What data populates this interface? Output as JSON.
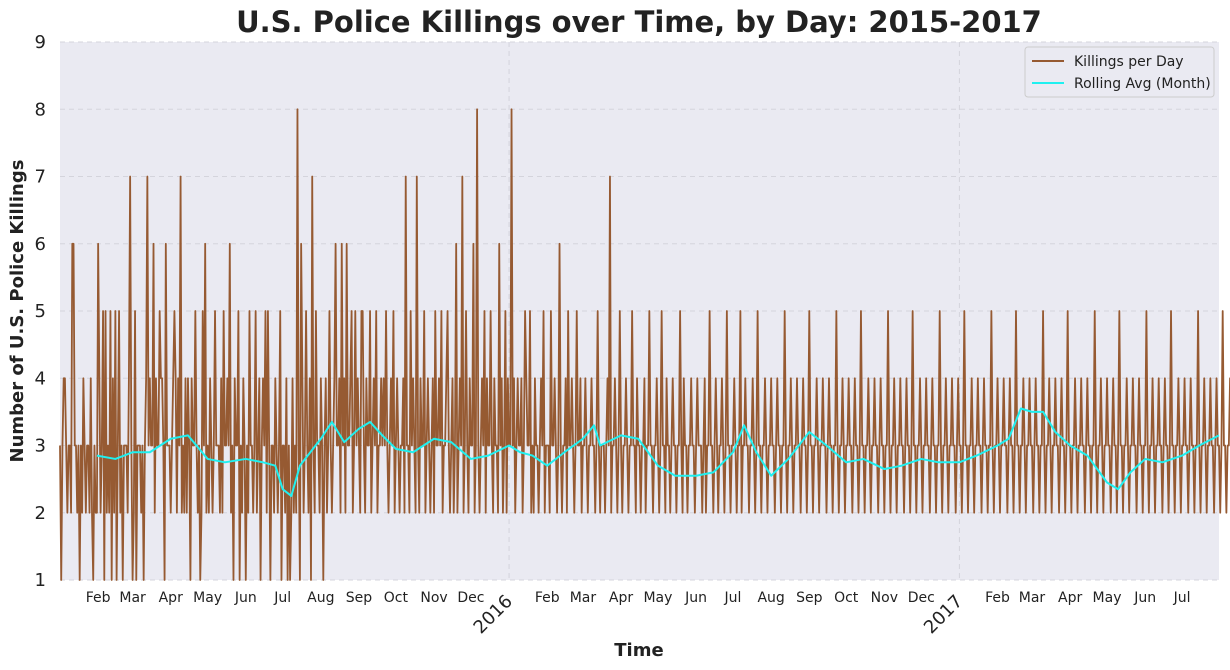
{
  "chart_data": {
    "type": "line",
    "title": "U.S. Police Killings over Time, by Day: 2015-2017",
    "xlabel": "Time",
    "ylabel": "Number of U.S. Police Killings",
    "ylim": [
      1,
      9
    ],
    "y_ticks": [
      1,
      2,
      3,
      4,
      5,
      6,
      7,
      8,
      9
    ],
    "xlim": [
      "2015-01-01",
      "2017-07-31"
    ],
    "grid": true,
    "legend_position": "top-right",
    "x_ticks": [
      {
        "date": "2015-02-01",
        "label": "Feb"
      },
      {
        "date": "2015-03-01",
        "label": "Mar"
      },
      {
        "date": "2015-04-01",
        "label": "Apr"
      },
      {
        "date": "2015-05-01",
        "label": "May"
      },
      {
        "date": "2015-06-01",
        "label": "Jun"
      },
      {
        "date": "2015-07-01",
        "label": "Jul"
      },
      {
        "date": "2015-08-01",
        "label": "Aug"
      },
      {
        "date": "2015-09-01",
        "label": "Sep"
      },
      {
        "date": "2015-10-01",
        "label": "Oct"
      },
      {
        "date": "2015-11-01",
        "label": "Nov"
      },
      {
        "date": "2015-12-01",
        "label": "Dec"
      },
      {
        "date": "2016-01-01",
        "label": "2016",
        "major": true
      },
      {
        "date": "2016-02-01",
        "label": "Feb"
      },
      {
        "date": "2016-03-01",
        "label": "Mar"
      },
      {
        "date": "2016-04-01",
        "label": "Apr"
      },
      {
        "date": "2016-05-01",
        "label": "May"
      },
      {
        "date": "2016-06-01",
        "label": "Jun"
      },
      {
        "date": "2016-07-01",
        "label": "Jul"
      },
      {
        "date": "2016-08-01",
        "label": "Aug"
      },
      {
        "date": "2016-09-01",
        "label": "Sep"
      },
      {
        "date": "2016-10-01",
        "label": "Oct"
      },
      {
        "date": "2016-11-01",
        "label": "Nov"
      },
      {
        "date": "2016-12-01",
        "label": "Dec"
      },
      {
        "date": "2017-01-01",
        "label": "2017",
        "major": true
      },
      {
        "date": "2017-02-01",
        "label": "Feb"
      },
      {
        "date": "2017-03-01",
        "label": "Mar"
      },
      {
        "date": "2017-04-01",
        "label": "Apr"
      },
      {
        "date": "2017-05-01",
        "label": "May"
      },
      {
        "date": "2017-06-01",
        "label": "Jun"
      },
      {
        "date": "2017-07-01",
        "label": "Jul"
      }
    ],
    "series": [
      {
        "name": "Killings per Day",
        "color": "#965a32",
        "x_start": "2015-01-01",
        "x_step": "1 day",
        "values": [
          3,
          1,
          3,
          4,
          4,
          3,
          2,
          3,
          3,
          2,
          6,
          6,
          3,
          3,
          2,
          3,
          1,
          3,
          2,
          4,
          3,
          2,
          3,
          3,
          2,
          4,
          2,
          1,
          3,
          2,
          2,
          6,
          4,
          2,
          3,
          5,
          1,
          5,
          2,
          3,
          2,
          5,
          1,
          4,
          2,
          5,
          1,
          3,
          5,
          2,
          3,
          1,
          3,
          3,
          3,
          2,
          4,
          7,
          3,
          1,
          2,
          5,
          1,
          3,
          3,
          3,
          2,
          3,
          1,
          3,
          4,
          7,
          3,
          4,
          3,
          3,
          6,
          2,
          4,
          3,
          3,
          5,
          4,
          4,
          3,
          1,
          6,
          3,
          3,
          3,
          2,
          3,
          4,
          5,
          4,
          2,
          4,
          3,
          7,
          2,
          3,
          2,
          4,
          2,
          4,
          3,
          1,
          4,
          3,
          3,
          5,
          3,
          2,
          3,
          1,
          2,
          5,
          3,
          6,
          2,
          3,
          2,
          4,
          3,
          2,
          3,
          5,
          3,
          3,
          3,
          2,
          4,
          2,
          5,
          3,
          3,
          4,
          3,
          6,
          2,
          3,
          1,
          4,
          3,
          3,
          5,
          1,
          3,
          2,
          4,
          3,
          1,
          3,
          2,
          5,
          3,
          3,
          2,
          3,
          5,
          2,
          3,
          4,
          1,
          3,
          4,
          3,
          5,
          2,
          5,
          3,
          1,
          3,
          3,
          2,
          4,
          3,
          2,
          3,
          5,
          1,
          3,
          3,
          2,
          4,
          1,
          3,
          1,
          2,
          4,
          2,
          3,
          2,
          8,
          3,
          1,
          6,
          4,
          2,
          3,
          5,
          3,
          2,
          4,
          1,
          7,
          3,
          2,
          5,
          3,
          3,
          2,
          4,
          3,
          1,
          3,
          4,
          2,
          3,
          5,
          3,
          2,
          3,
          4,
          6,
          3,
          3,
          4,
          2,
          6,
          3,
          4,
          2,
          6,
          3,
          3,
          4,
          5,
          2,
          3,
          5,
          3,
          4,
          3,
          2,
          5,
          5,
          3,
          2,
          4,
          3,
          3,
          5,
          2,
          3,
          4,
          3,
          5,
          2,
          3,
          3,
          4,
          3,
          4,
          3,
          5,
          3,
          2,
          3,
          4,
          3,
          5,
          2,
          3,
          4,
          3,
          2,
          3,
          3,
          4,
          2,
          7,
          3,
          3,
          2,
          5,
          3,
          4,
          3,
          2,
          7,
          3,
          2,
          4,
          3,
          3,
          5,
          2,
          3,
          4,
          3,
          2,
          3,
          4,
          2,
          5,
          3,
          3,
          4,
          3,
          5,
          2,
          3,
          3,
          4,
          5,
          3,
          2,
          3,
          4,
          2,
          3,
          6,
          2,
          3,
          4,
          3,
          7,
          2,
          3,
          5,
          3,
          2,
          4,
          3,
          3,
          6,
          2,
          3,
          8,
          3,
          2,
          3,
          4,
          3,
          5,
          2,
          4,
          3,
          3,
          5,
          3,
          2,
          4,
          3,
          3,
          2,
          6,
          3,
          4,
          2,
          3,
          5,
          2,
          4,
          3,
          3,
          8,
          3,
          4,
          2,
          3,
          4,
          3,
          3,
          4,
          2,
          3,
          5,
          4,
          3,
          3,
          5,
          2,
          3,
          2,
          4,
          3,
          3,
          2,
          3,
          4,
          3,
          5,
          2,
          3,
          3,
          3,
          2,
          5,
          3,
          3,
          4,
          3,
          2,
          3,
          6,
          3,
          2,
          3,
          3,
          4,
          2,
          5,
          3,
          3,
          4,
          3,
          2,
          3,
          5,
          3,
          3,
          4,
          2,
          3,
          3,
          4,
          3,
          2,
          3,
          3,
          4,
          3,
          3,
          2,
          3,
          5,
          3,
          2,
          3,
          3,
          3,
          2,
          3,
          4,
          3,
          7,
          2,
          3,
          3,
          4,
          3,
          2,
          3,
          5,
          3,
          2,
          3,
          3,
          4,
          3,
          2,
          3,
          3,
          5,
          3,
          3,
          2,
          4,
          3,
          3,
          2,
          3,
          3,
          4,
          2,
          3,
          3,
          5,
          3,
          3,
          2,
          3,
          3,
          4,
          3,
          2,
          3,
          5,
          3,
          3,
          2,
          4,
          3,
          3,
          2,
          3,
          4,
          3,
          3,
          2,
          3,
          3,
          5,
          3,
          2,
          4,
          3,
          3,
          2,
          3,
          3,
          4,
          3,
          3,
          2,
          3,
          4,
          3,
          3,
          3,
          2,
          3,
          4,
          2,
          3,
          3,
          5,
          3,
          3,
          2,
          3,
          4,
          3,
          2,
          3,
          3,
          4,
          3,
          2,
          3,
          5,
          3,
          3,
          2,
          3,
          3,
          4,
          3,
          2,
          3,
          3,
          5,
          2,
          3,
          3,
          4,
          3,
          3,
          2,
          3,
          3,
          4,
          3,
          2,
          3,
          5,
          3,
          3,
          2,
          3,
          3,
          4,
          3,
          2,
          3,
          3,
          4,
          3,
          3,
          2,
          3,
          4,
          3,
          3,
          2,
          3,
          3,
          5,
          3,
          2,
          3,
          3,
          4,
          3,
          2,
          3,
          3,
          4,
          3,
          3,
          2,
          3,
          4,
          3,
          3,
          2,
          3,
          5,
          3,
          3,
          2,
          3,
          3,
          4,
          3,
          2,
          3,
          3,
          4,
          3,
          3,
          2,
          3,
          4,
          3,
          3,
          2,
          3,
          3,
          5,
          3,
          2,
          3,
          3,
          4,
          3,
          2,
          3,
          3,
          4,
          3,
          3,
          2,
          3,
          4,
          3,
          3,
          2,
          3,
          5,
          3,
          3,
          2,
          3,
          3,
          4,
          3,
          2,
          3,
          3,
          4,
          3,
          3,
          2,
          3,
          4,
          3,
          3,
          2,
          3,
          3,
          5,
          3,
          2,
          3,
          3,
          4,
          3,
          2,
          3,
          3,
          4,
          3,
          3,
          2,
          3,
          4,
          3,
          3,
          2,
          3,
          5,
          3,
          3,
          2,
          3,
          3,
          4,
          3,
          2,
          3,
          3,
          4,
          3,
          3,
          2,
          3,
          4,
          3,
          3,
          2,
          3,
          3,
          5,
          3,
          2,
          3,
          3,
          4,
          3,
          2,
          3,
          3,
          4,
          3,
          3,
          2,
          3,
          4,
          3,
          3,
          2,
          3,
          5,
          3,
          3,
          2,
          3,
          3,
          4,
          3,
          2,
          3,
          3,
          4,
          3,
          3,
          2,
          3,
          4,
          3,
          3,
          2,
          3,
          3,
          5,
          3,
          2,
          3,
          3,
          4,
          3,
          2,
          3,
          3,
          4,
          3,
          3,
          2,
          3,
          4,
          3,
          3,
          2,
          3,
          5,
          3,
          3,
          2,
          3,
          3,
          4,
          3,
          2,
          3,
          3,
          4,
          3,
          3,
          2,
          3,
          4,
          3,
          3,
          2,
          3,
          3,
          5,
          3,
          2,
          3,
          3,
          4,
          3,
          2,
          3,
          3,
          4,
          3,
          3,
          2,
          3,
          4,
          3,
          3,
          2,
          3,
          5,
          3,
          3,
          2,
          3,
          3,
          4,
          3,
          2,
          3,
          3,
          4,
          3,
          3,
          2,
          3,
          4,
          3,
          3,
          2,
          3,
          3,
          5,
          3,
          2,
          3,
          3,
          4,
          3,
          2,
          3,
          3,
          4,
          3,
          3,
          2,
          3,
          4,
          3,
          3,
          2,
          3,
          5,
          3,
          3,
          2,
          3,
          3,
          4,
          3,
          2,
          3,
          3,
          4,
          3,
          3,
          2,
          3,
          4,
          3,
          3,
          2,
          3,
          3,
          5,
          3,
          2,
          3,
          3,
          4,
          3,
          2,
          3,
          3,
          4,
          3,
          3,
          2,
          3,
          4,
          3,
          3,
          2,
          3,
          5,
          3,
          3,
          2,
          3,
          3,
          4,
          3,
          2,
          3,
          3,
          4,
          3,
          3,
          2,
          3,
          4,
          3,
          3,
          2,
          3,
          3,
          5,
          3,
          2,
          3,
          3,
          4,
          3,
          2,
          3,
          3,
          4,
          3,
          3,
          2,
          3,
          4,
          3,
          3,
          2,
          3,
          5,
          3,
          3,
          2,
          3,
          3,
          4,
          3,
          2,
          3,
          3,
          4,
          3,
          3,
          2,
          3,
          4,
          3,
          3,
          2,
          3
        ]
      },
      {
        "name": "Rolling Avg (Month)",
        "color": "#1ff0f0",
        "x": [
          "2015-01-31",
          "2015-02-15",
          "2015-03-01",
          "2015-03-15",
          "2015-04-01",
          "2015-04-15",
          "2015-05-01",
          "2015-05-15",
          "2015-06-01",
          "2015-06-15",
          "2015-06-25",
          "2015-07-01",
          "2015-07-08",
          "2015-07-15",
          "2015-08-01",
          "2015-08-10",
          "2015-08-20",
          "2015-09-01",
          "2015-09-10",
          "2015-09-20",
          "2015-10-01",
          "2015-10-15",
          "2015-11-01",
          "2015-11-15",
          "2015-12-01",
          "2015-12-15",
          "2016-01-01",
          "2016-01-10",
          "2016-01-20",
          "2016-02-01",
          "2016-02-15",
          "2016-03-01",
          "2016-03-10",
          "2016-03-15",
          "2016-04-01",
          "2016-04-15",
          "2016-05-01",
          "2016-05-15",
          "2016-06-01",
          "2016-06-15",
          "2016-07-01",
          "2016-07-10",
          "2016-07-20",
          "2016-08-01",
          "2016-08-15",
          "2016-09-01",
          "2016-09-15",
          "2016-10-01",
          "2016-10-15",
          "2016-11-01",
          "2016-11-15",
          "2016-12-01",
          "2016-12-15",
          "2017-01-01",
          "2017-01-15",
          "2017-02-01",
          "2017-02-10",
          "2017-02-20",
          "2017-03-01",
          "2017-03-10",
          "2017-03-20",
          "2017-04-01",
          "2017-04-15",
          "2017-05-01",
          "2017-05-10",
          "2017-05-20",
          "2017-06-01",
          "2017-06-15",
          "2017-07-01",
          "2017-07-15",
          "2017-07-31"
        ],
        "values": [
          2.85,
          2.8,
          2.9,
          2.9,
          3.1,
          3.15,
          2.8,
          2.75,
          2.8,
          2.75,
          2.7,
          2.35,
          2.25,
          2.7,
          3.1,
          3.35,
          3.05,
          3.25,
          3.35,
          3.15,
          2.95,
          2.9,
          3.1,
          3.05,
          2.8,
          2.85,
          3.0,
          2.9,
          2.85,
          2.7,
          2.9,
          3.1,
          3.3,
          3.0,
          3.15,
          3.1,
          2.7,
          2.55,
          2.55,
          2.6,
          2.9,
          3.3,
          2.9,
          2.55,
          2.8,
          3.2,
          3.0,
          2.75,
          2.8,
          2.65,
          2.7,
          2.8,
          2.75,
          2.75,
          2.85,
          3.0,
          3.1,
          3.55,
          3.5,
          3.5,
          3.2,
          3.0,
          2.85,
          2.45,
          2.35,
          2.6,
          2.8,
          2.75,
          2.85,
          3.0,
          3.15
        ]
      }
    ]
  }
}
